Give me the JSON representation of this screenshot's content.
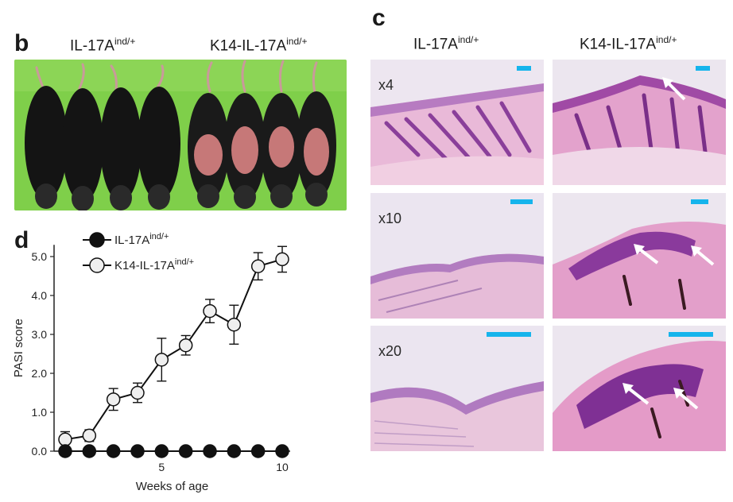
{
  "figure": {
    "panel_b": {
      "letter": "b",
      "group1": {
        "name": "IL-17A",
        "sup": "ind/+"
      },
      "group2": {
        "name": "K14-IL-17A",
        "sup": "ind/+"
      }
    },
    "panel_c": {
      "letter": "c",
      "col1": {
        "name": "IL-17A",
        "sup": "ind/+"
      },
      "col2": {
        "name": "K14-IL-17A",
        "sup": "ind/+"
      },
      "magnifications": [
        "x4",
        "x10",
        "x20"
      ]
    },
    "panel_d": {
      "letter": "d"
    }
  },
  "colors": {
    "photo_bg": "#7fcf4a",
    "scale_bar": "#16b4ec",
    "he_pink": "#e7a9cf",
    "he_purple": "#8a3f9a"
  },
  "chart_data": {
    "type": "line",
    "xlabel": "Weeks of age",
    "ylabel": "PASI score",
    "xlim": [
      1,
      10
    ],
    "ylim": [
      0,
      5.3
    ],
    "xticks": [
      5,
      10
    ],
    "yticks": [
      0.0,
      1.0,
      2.0,
      3.0,
      4.0,
      5.0
    ],
    "ytick_labels": [
      "0.0",
      "1.0",
      "2.0",
      "3.0",
      "4.0",
      "5.0"
    ],
    "xtick_labels": [
      "5",
      "10"
    ],
    "legend": "top-left",
    "series": [
      {
        "name": "IL-17A",
        "name_sup": "ind/+",
        "marker": "filled-circle",
        "x": [
          1,
          2,
          3,
          4,
          5,
          6,
          7,
          8,
          9,
          10
        ],
        "y": [
          0,
          0,
          0,
          0,
          0,
          0,
          0,
          0,
          0,
          0
        ],
        "err": [
          0,
          0,
          0,
          0,
          0,
          0,
          0,
          0,
          0,
          0
        ]
      },
      {
        "name": "K14-IL-17A",
        "name_sup": "ind/+",
        "marker": "open-circle",
        "x": [
          1,
          2,
          3,
          4,
          5,
          6,
          7,
          8,
          9,
          10
        ],
        "y": [
          0.3,
          0.4,
          1.33,
          1.5,
          2.35,
          2.72,
          3.6,
          3.25,
          4.75,
          4.93
        ],
        "err": [
          0.2,
          0.15,
          0.28,
          0.25,
          0.55,
          0.25,
          0.3,
          0.5,
          0.35,
          0.33
        ]
      }
    ]
  }
}
